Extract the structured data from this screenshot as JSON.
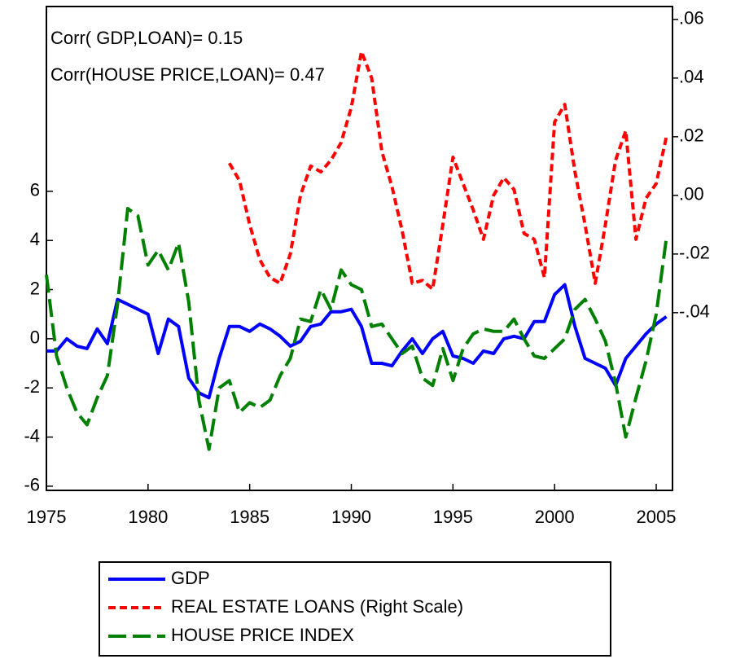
{
  "chart_data": {
    "type": "line",
    "annotations": [
      "Corr( GDP,LOAN)= 0.15",
      "Corr(HOUSE PRICE,LOAN)= 0.47"
    ],
    "x": [
      1975,
      1975.5,
      1976,
      1976.5,
      1977,
      1977.5,
      1978,
      1978.5,
      1979,
      1979.5,
      1980,
      1980.5,
      1981,
      1981.5,
      1982,
      1982.5,
      1983,
      1983.5,
      1984,
      1984.5,
      1985,
      1985.5,
      1986,
      1986.5,
      1987,
      1987.5,
      1988,
      1988.5,
      1989,
      1989.5,
      1990,
      1990.5,
      1991,
      1991.5,
      1992,
      1992.5,
      1993,
      1993.5,
      1994,
      1994.5,
      1995,
      1995.5,
      1996,
      1996.5,
      1997,
      1997.5,
      1998,
      1998.5,
      1999,
      1999.5,
      2000,
      2000.5,
      2001,
      2001.5,
      2002,
      2002.5,
      2003,
      2003.5,
      2004,
      2004.5,
      2005,
      2005.5
    ],
    "series": [
      {
        "name": "GDP",
        "color": "#0000ff",
        "dash": "solid",
        "values": [
          -0.5,
          -0.5,
          0,
          -0.3,
          -0.4,
          0.4,
          -0.2,
          1.6,
          1.4,
          1.2,
          1.0,
          -0.6,
          0.8,
          0.5,
          -1.6,
          -2.2,
          -2.4,
          -0.8,
          0.5,
          0.5,
          0.3,
          0.6,
          0.4,
          0.1,
          -0.3,
          -0.1,
          0.5,
          0.6,
          1.1,
          1.1,
          1.2,
          0.5,
          -1.0,
          -1.0,
          -1.1,
          -0.5,
          0.0,
          -0.6,
          0.0,
          0.3,
          -0.7,
          -0.8,
          -1.0,
          -0.5,
          -0.6,
          0.0,
          0.1,
          0.0,
          0.7,
          0.7,
          1.8,
          2.2,
          0.5,
          -0.8,
          -1.0,
          -1.2,
          -1.9,
          -0.8,
          -0.3,
          0.2,
          0.6,
          0.9
        ]
      },
      {
        "name": "REAL ESTATE LOANS (Right Scale)",
        "color": "#ff0000",
        "dash": "short",
        "axis": "y2",
        "values": [
          null,
          null,
          null,
          null,
          null,
          null,
          null,
          null,
          null,
          null,
          null,
          null,
          null,
          null,
          null,
          null,
          null,
          null,
          0.011,
          0.005,
          -0.01,
          -0.022,
          -0.028,
          -0.03,
          -0.02,
          0.0,
          0.01,
          0.008,
          0.012,
          0.018,
          0.03,
          0.049,
          0.04,
          0.015,
          0.003,
          -0.012,
          -0.03,
          -0.029,
          -0.032,
          -0.01,
          0.013,
          0.004,
          -0.005,
          -0.015,
          0.0,
          0.006,
          0.002,
          -0.013,
          -0.015,
          -0.028,
          0.025,
          0.031,
          0.008,
          -0.01,
          -0.03,
          -0.01,
          0.012,
          0.022,
          -0.015,
          -0.001,
          0.004,
          0.02
        ]
      },
      {
        "name": "HOUSE PRICE INDEX",
        "color": "#008000",
        "dash": "long",
        "values": [
          2.6,
          -0.7,
          -2.0,
          -3.0,
          -3.5,
          -2.4,
          -1.5,
          1.4,
          5.3,
          5.0,
          3.0,
          3.6,
          2.8,
          3.9,
          1.5,
          -2.5,
          -4.5,
          -2.0,
          -1.7,
          -3.0,
          -2.6,
          -2.8,
          -2.5,
          -1.5,
          -0.8,
          0.8,
          0.7,
          2.0,
          1.2,
          2.8,
          2.2,
          2.0,
          0.5,
          0.6,
          0.0,
          -0.6,
          -0.3,
          -1.6,
          -1.9,
          -0.4,
          -1.7,
          -0.4,
          0.2,
          0.4,
          0.3,
          0.3,
          0.8,
          0.0,
          -0.7,
          -0.8,
          -0.4,
          0.0,
          1.2,
          1.6,
          0.8,
          -0.1,
          -1.8,
          -4.0,
          -2.4,
          -0.9,
          1.0,
          4.1
        ]
      }
    ],
    "xlim": [
      1975,
      2005.8
    ],
    "xticks": [
      1975,
      1980,
      1985,
      1990,
      1995,
      2000,
      2005
    ],
    "ylim": [
      -6.17,
      13.52
    ],
    "yticks": [
      -6,
      -4,
      -2,
      0,
      2,
      4,
      6
    ],
    "y2lim": [
      -0.1006,
      0.0644
    ],
    "y2ticks": [
      {
        "value": -0.04,
        "label": "-.04"
      },
      {
        "value": -0.02,
        "label": "-.02"
      },
      {
        "value": 0,
        "label": ".00"
      },
      {
        "value": 0.02,
        "label": ".02"
      },
      {
        "value": 0.04,
        "label": ".04"
      },
      {
        "value": 0.06,
        "label": ".06"
      }
    ],
    "legend": "bottom"
  }
}
